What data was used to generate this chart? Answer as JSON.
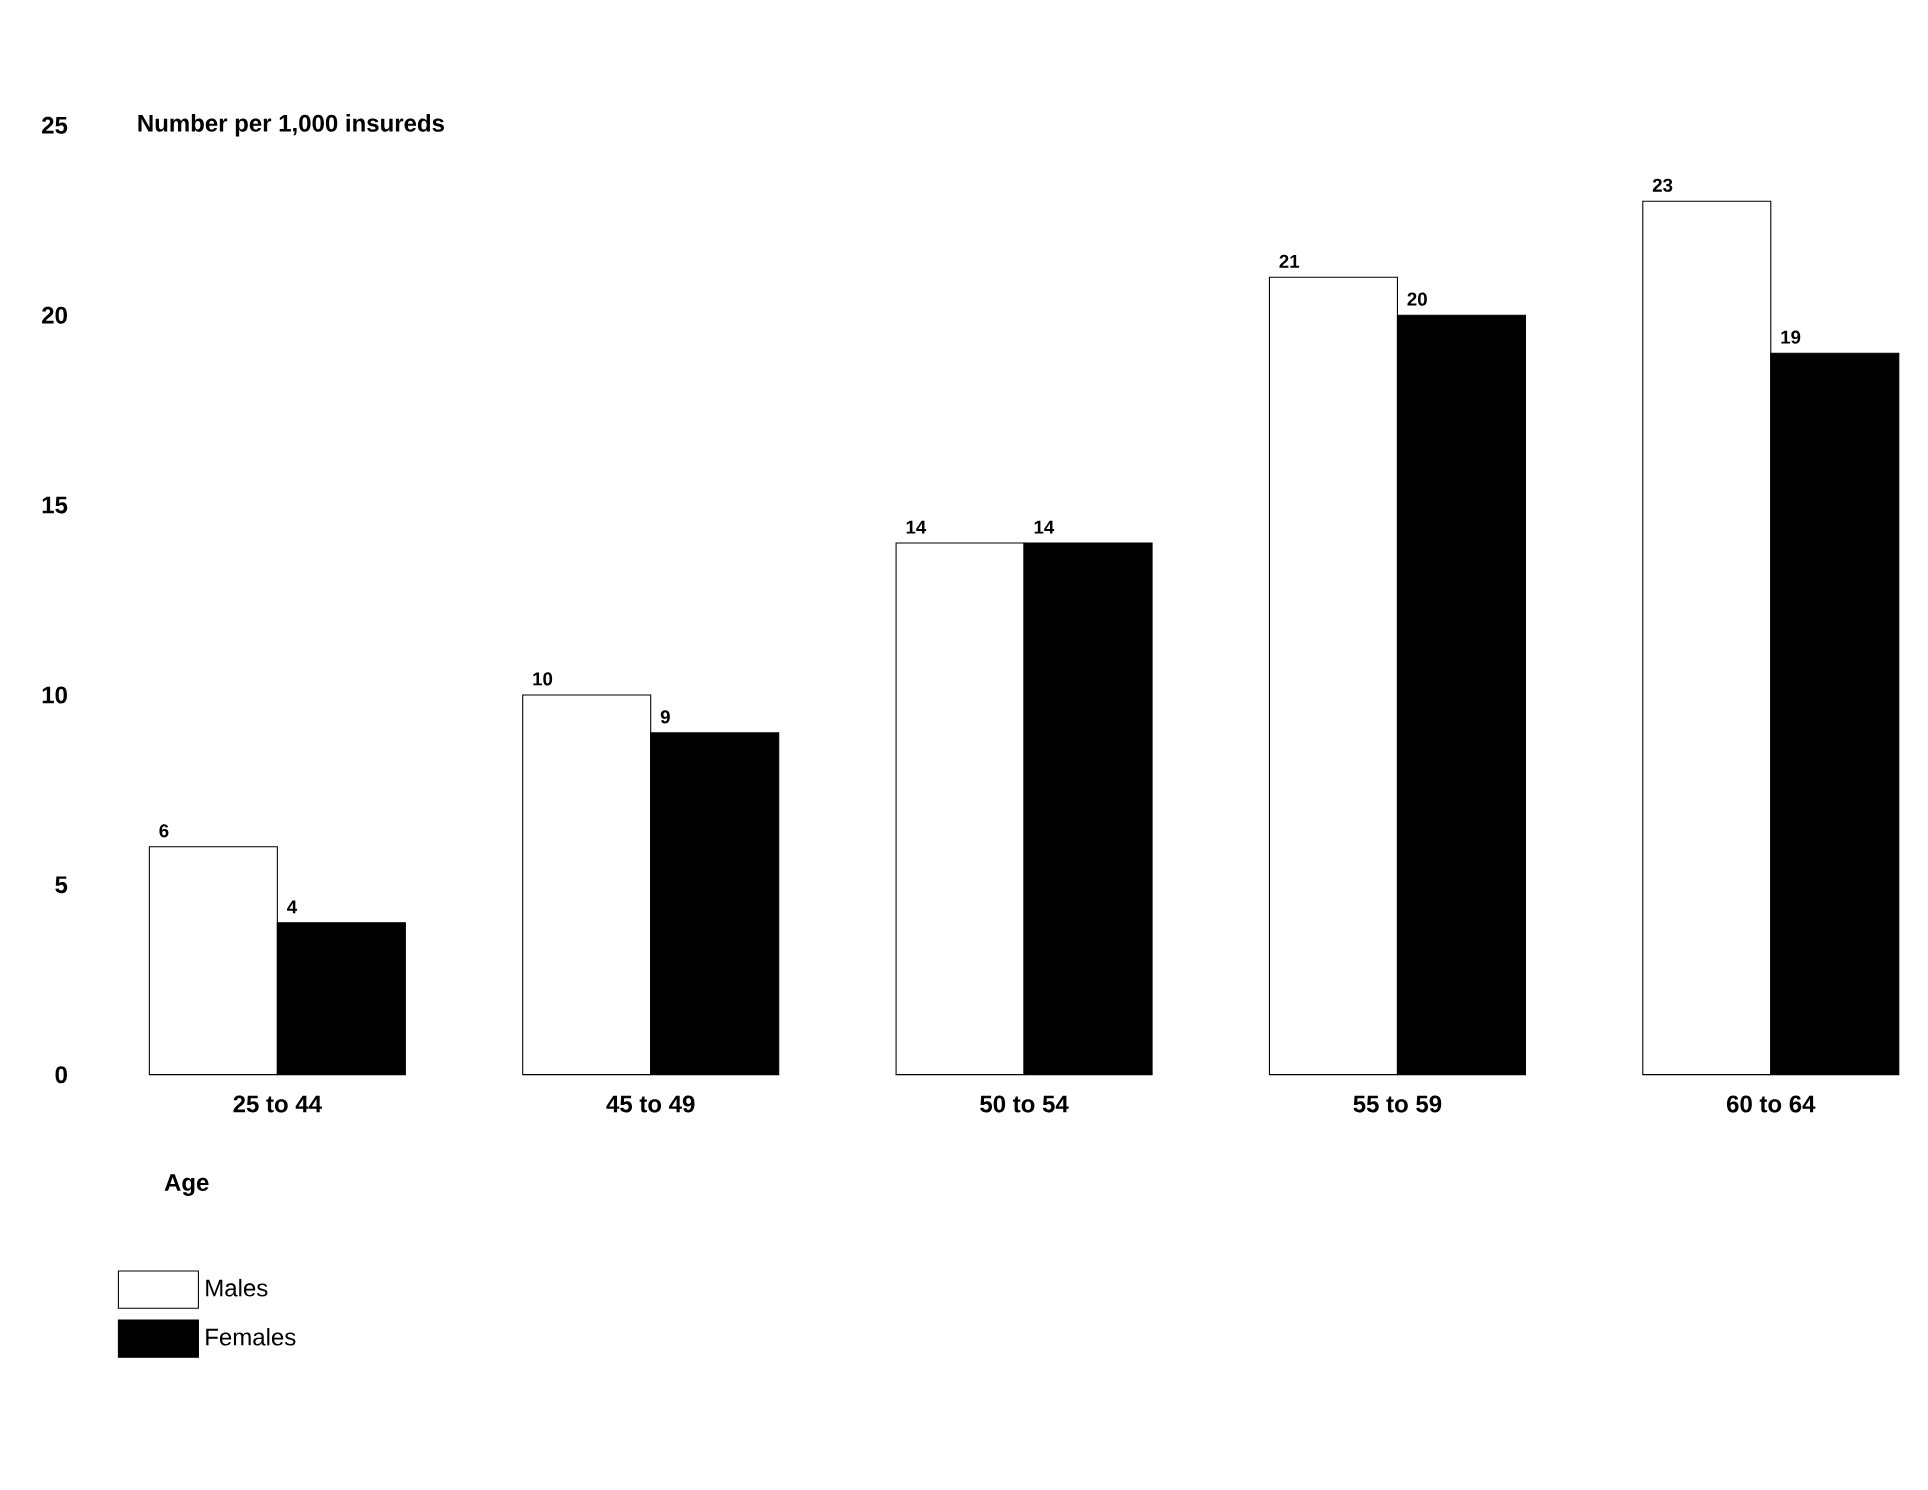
{
  "chart_data": {
    "type": "bar",
    "ylabel": "Number per 1,000 insureds",
    "xlabel": "Age",
    "categories": [
      "25 to 44",
      "45 to 49",
      "50 to 54",
      "55 to 59",
      "60 to 64"
    ],
    "series": [
      {
        "name": "Males",
        "color": "#ffffff",
        "values": [
          6,
          10,
          14,
          21,
          23
        ]
      },
      {
        "name": "Females",
        "color": "#000000",
        "values": [
          4,
          9,
          14,
          20,
          19
        ]
      }
    ],
    "ylim": [
      0,
      25
    ],
    "yticks": [
      0,
      5,
      10,
      15,
      20,
      25
    ],
    "data_labels": true,
    "legend": "bottom left"
  }
}
